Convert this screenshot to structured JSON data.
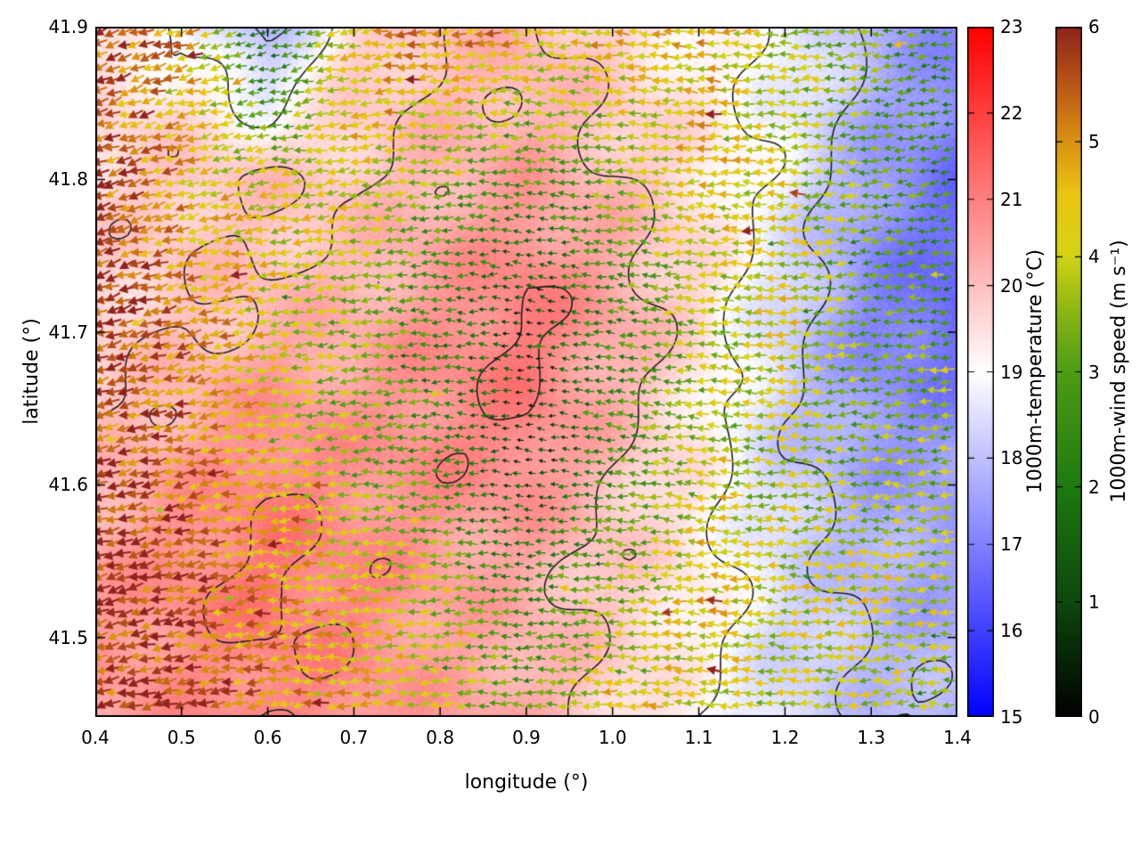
{
  "chart_data": {
    "type": "quiver",
    "subtype": "wind-vector field over temperature heatmap with contour lines",
    "xlabel": "longitude (°)",
    "ylabel": "latitude (°)",
    "xlim": [
      0.4,
      1.4
    ],
    "ylim": [
      41.448,
      41.9
    ],
    "xticks": {
      "labels": [
        "0.4",
        "0.5",
        "0.6",
        "0.7",
        "0.8",
        "0.9",
        "1.0",
        "1.1",
        "1.2",
        "1.3",
        "1.4"
      ],
      "values": [
        0.4,
        0.5,
        0.6,
        0.7,
        0.8,
        0.9,
        1.0,
        1.1,
        1.2,
        1.3,
        1.4
      ]
    },
    "yticks": {
      "labels": [
        "41.5",
        "41.6",
        "41.7",
        "41.8",
        "41.9"
      ],
      "values": [
        41.5,
        41.6,
        41.7,
        41.8,
        41.9
      ]
    },
    "contour_levels": [
      18,
      19,
      20,
      21
    ],
    "grid_lon": [
      0.4,
      0.5,
      0.6,
      0.7,
      0.8,
      0.9,
      1.0,
      1.1,
      1.2,
      1.3,
      1.4
    ],
    "grid_lat": [
      41.44,
      41.53,
      41.62,
      41.71,
      41.8,
      41.9
    ],
    "temperature_c": [
      [
        20.6,
        20.8,
        21.0,
        20.8,
        20.4,
        20.2,
        19.6,
        19.0,
        18.4,
        18.2,
        18.0
      ],
      [
        20.4,
        20.8,
        21.2,
        21.0,
        20.6,
        20.3,
        19.8,
        19.2,
        18.3,
        17.8,
        17.6
      ],
      [
        20.0,
        20.4,
        20.8,
        20.6,
        20.8,
        21.0,
        20.2,
        19.4,
        18.2,
        17.4,
        17.2
      ],
      [
        19.8,
        20.0,
        20.2,
        20.2,
        20.6,
        21.0,
        20.4,
        19.6,
        18.4,
        17.2,
        16.6
      ],
      [
        19.6,
        19.9,
        20.0,
        20.0,
        20.3,
        20.5,
        20.0,
        19.4,
        18.6,
        17.4,
        16.8
      ],
      [
        19.4,
        18.8,
        17.6,
        19.6,
        20.0,
        20.2,
        19.8,
        19.2,
        18.8,
        17.8,
        17.0
      ]
    ],
    "wind_speed_ms": [
      [
        5.8,
        5.6,
        5.2,
        4.6,
        4.2,
        3.0,
        4.6,
        4.2,
        3.6,
        3.8,
        3.4
      ],
      [
        5.8,
        5.5,
        4.8,
        4.4,
        3.6,
        2.2,
        3.4,
        4.4,
        4.0,
        4.2,
        3.8
      ],
      [
        5.8,
        5.2,
        4.4,
        3.2,
        2.6,
        0.6,
        2.6,
        3.8,
        3.6,
        3.2,
        3.6
      ],
      [
        5.8,
        5.4,
        4.2,
        3.4,
        2.4,
        0.5,
        2.4,
        3.6,
        4.2,
        3.0,
        2.8
      ],
      [
        5.6,
        4.6,
        4.0,
        4.2,
        3.2,
        2.6,
        3.4,
        4.4,
        4.0,
        3.2,
        2.6
      ],
      [
        5.4,
        5.0,
        1.5,
        4.6,
        5.2,
        4.8,
        4.4,
        4.6,
        3.8,
        3.0,
        2.4
      ]
    ],
    "wind_dir_deg": [
      [
        195,
        192,
        188,
        185,
        182,
        180,
        178,
        176,
        178,
        180,
        182
      ],
      [
        195,
        192,
        186,
        183,
        180,
        178,
        176,
        175,
        178,
        182,
        184
      ],
      [
        196,
        193,
        188,
        184,
        180,
        175,
        172,
        174,
        178,
        182,
        185
      ],
      [
        198,
        195,
        190,
        185,
        180,
        170,
        170,
        174,
        178,
        183,
        186
      ],
      [
        200,
        196,
        192,
        188,
        184,
        178,
        174,
        176,
        180,
        184,
        188
      ],
      [
        202,
        198,
        194,
        190,
        186,
        182,
        178,
        178,
        182,
        186,
        190
      ]
    ],
    "temperature_colorbar": {
      "label": "1000m-temperature (°C)",
      "min": 15,
      "max": 23,
      "tick_labels": [
        "15",
        "16",
        "17",
        "18",
        "19",
        "20",
        "21",
        "22",
        "23"
      ],
      "tick_values": [
        15,
        16,
        17,
        18,
        19,
        20,
        21,
        22,
        23
      ],
      "stops": [
        [
          0,
          "#0000ff"
        ],
        [
          0.5,
          "#ffffff"
        ],
        [
          1,
          "#ff0000"
        ]
      ]
    },
    "wind_colorbar": {
      "label": "1000m-wind speed (m s⁻¹)",
      "min": 0,
      "max": 6,
      "tick_labels": [
        "0",
        "1",
        "2",
        "3",
        "4",
        "5",
        "6"
      ],
      "tick_values": [
        0,
        1,
        2,
        3,
        4,
        5,
        6
      ],
      "stops": [
        [
          0,
          "#000000"
        ],
        [
          0.17,
          "#0d490c"
        ],
        [
          0.33,
          "#1e7810"
        ],
        [
          0.5,
          "#4c9c14"
        ],
        [
          0.58,
          "#84b214"
        ],
        [
          0.67,
          "#d4d414"
        ],
        [
          0.76,
          "#eac313"
        ],
        [
          0.84,
          "#d88e12"
        ],
        [
          0.92,
          "#b85417"
        ],
        [
          1,
          "#8e231b"
        ]
      ]
    },
    "frame_color": "#000000",
    "contour_color": "#1b1b1b",
    "background_color": "#ffffff"
  }
}
